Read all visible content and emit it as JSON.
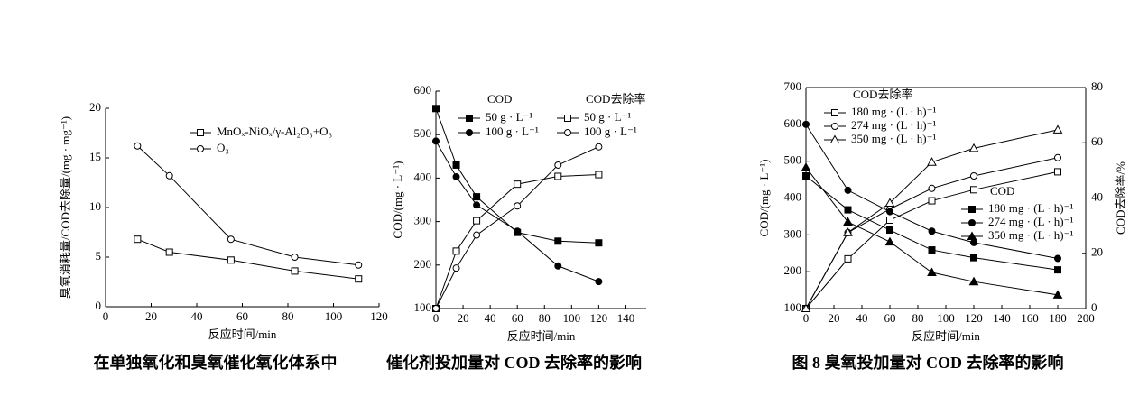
{
  "chart_data": [
    {
      "type": "line",
      "caption": "在单独氧化和臭氧催化氧化体系中",
      "x_label": "反应时间/min",
      "y_label": "臭氧消耗量/COD去除量/(mg · mg⁻¹)",
      "xlim": [
        0,
        120
      ],
      "xticks": [
        0,
        20,
        40,
        60,
        80,
        100,
        120
      ],
      "ylim": [
        0,
        20
      ],
      "yticks": [
        0,
        5,
        10,
        15,
        20
      ],
      "x": [
        14,
        28,
        55,
        83,
        111
      ],
      "series": [
        {
          "name": "MnOₓ-NiOₓ/γ-Al₂O₃+O₃",
          "color": "#000",
          "marker": "square",
          "filled": false,
          "values": [
            6.8,
            5.5,
            4.7,
            3.6,
            2.8
          ]
        },
        {
          "name": "O₃",
          "color": "#000",
          "marker": "circle",
          "filled": false,
          "values": [
            16.2,
            13.2,
            6.8,
            5.0,
            4.2
          ]
        }
      ]
    },
    {
      "type": "line",
      "caption": "催化剂投加量对 COD 去除率的影响",
      "x_label": "反应时间/min",
      "y_label": "COD/(mg · L⁻¹)",
      "xlim": [
        0,
        155
      ],
      "xticks": [
        0,
        20,
        40,
        60,
        80,
        100,
        120,
        140
      ],
      "ylim": [
        100,
        600
      ],
      "yticks": [
        100,
        200,
        300,
        400,
        500,
        600
      ],
      "x": [
        0,
        15,
        30,
        60,
        90,
        120
      ],
      "series_groups": [
        {
          "title": "COD",
          "series": [
            {
              "name": "50 g · L⁻¹",
              "color": "#000",
              "marker": "square",
              "filled": true,
              "values": [
                560,
                430,
                357,
                275,
                255,
                251
              ]
            },
            {
              "name": "100 g · L⁻¹",
              "color": "#000",
              "marker": "circle",
              "filled": true,
              "values": [
                485,
                403,
                338,
                278,
                198,
                162
              ]
            }
          ]
        },
        {
          "title": "COD去除率",
          "series": [
            {
              "name": "50 g · L⁻¹",
              "color": "#000",
              "marker": "square",
              "filled": false,
              "values": [
                100,
                232,
                302,
                386,
                404,
                408
              ]
            },
            {
              "name": "100 g · L⁻¹",
              "color": "#000",
              "marker": "circle",
              "filled": false,
              "values": [
                100,
                193,
                269,
                336,
                430,
                472
              ]
            }
          ]
        }
      ]
    },
    {
      "type": "line",
      "caption": "图 8   臭氧投加量对 COD 去除率的影响",
      "x_label": "反应时间/min",
      "y_label": "COD/(mg · L⁻¹)",
      "y2_label": "COD去除率/%",
      "xlim": [
        0,
        200
      ],
      "xticks": [
        0,
        20,
        40,
        60,
        80,
        100,
        120,
        140,
        160,
        180,
        200
      ],
      "ylim": [
        100,
        700
      ],
      "yticks": [
        100,
        200,
        300,
        400,
        500,
        600,
        700
      ],
      "y2lim": [
        0,
        80
      ],
      "y2ticks": [
        0,
        20,
        40,
        60,
        80
      ],
      "x": [
        0,
        30,
        60,
        90,
        120,
        180
      ],
      "series_groups": [
        {
          "title": "COD去除率",
          "series": [
            {
              "name": "180 mg · (L · h)⁻¹",
              "color": "#000",
              "marker": "square",
              "filled": false,
              "axis": "y2",
              "values": [
                0,
                18,
                32,
                39,
                43,
                49.5
              ]
            },
            {
              "name": "274 mg · (L · h)⁻¹",
              "color": "#000",
              "marker": "circle",
              "filled": false,
              "axis": "y2",
              "values": [
                0,
                27.5,
                36,
                43.5,
                48,
                54.6
              ]
            },
            {
              "name": "350 mg · (L · h)⁻¹",
              "color": "#000",
              "marker": "triangle",
              "filled": false,
              "axis": "y2",
              "values": [
                0,
                27.5,
                38.2,
                53,
                58,
                64.7
              ]
            }
          ]
        },
        {
          "title": "COD",
          "series": [
            {
              "name": "180 mg · (L · h)⁻¹",
              "color": "#000",
              "marker": "square",
              "filled": true,
              "values": [
                460,
                368,
                313,
                259,
                238,
                205
              ]
            },
            {
              "name": "274 mg · (L · h)⁻¹",
              "color": "#000",
              "marker": "circle",
              "filled": true,
              "values": [
                600,
                421,
                363,
                310,
                279,
                236
              ]
            },
            {
              "name": "350 mg · (L · h)⁻¹",
              "color": "#000",
              "marker": "triangle",
              "filled": true,
              "values": [
                483,
                335,
                281,
                198,
                173,
                137
              ]
            }
          ]
        }
      ]
    }
  ]
}
